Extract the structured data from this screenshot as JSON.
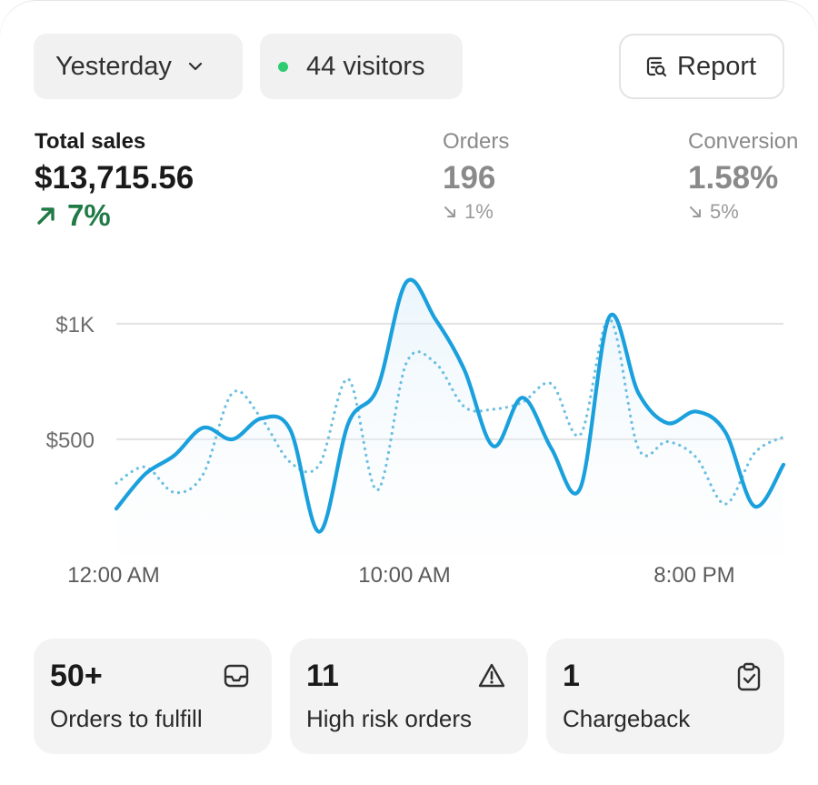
{
  "filters": {
    "date_label": "Yesterday",
    "visitors_label": "44 visitors",
    "live_dot_color": "#2ecc71"
  },
  "actions": {
    "report_label": "Report"
  },
  "metrics": [
    {
      "label": "Total sales",
      "value": "$13,715.56",
      "change": "7%",
      "direction": "up"
    },
    {
      "label": "Orders",
      "value": "196",
      "change": "1%",
      "direction": "down"
    },
    {
      "label": "Conversion",
      "value": "1.58%",
      "change": "5%",
      "direction": "down"
    }
  ],
  "chart_data": {
    "type": "line",
    "x_tick_labels": [
      "12:00 AM",
      "10:00 AM",
      "8:00 PM"
    ],
    "y_tick_labels": [
      "$1K",
      "$500"
    ],
    "ylim": [
      0,
      1200
    ],
    "grid": true,
    "series": [
      {
        "style": "solid",
        "color": "#1aa0dc",
        "values": [
          200,
          350,
          430,
          550,
          500,
          590,
          540,
          100,
          570,
          720,
          1180,
          1020,
          800,
          470,
          680,
          460,
          290,
          1030,
          700,
          570,
          620,
          530,
          210,
          390
        ]
      },
      {
        "style": "dotted",
        "color": "#6cbfe0",
        "values": [
          310,
          380,
          270,
          350,
          700,
          590,
          400,
          390,
          760,
          280,
          830,
          830,
          640,
          630,
          660,
          740,
          520,
          1020,
          460,
          490,
          420,
          220,
          440,
          510
        ]
      }
    ]
  },
  "tiles": [
    {
      "value": "50+",
      "label": "Orders to fulfill",
      "icon": "inbox-icon"
    },
    {
      "value": "11",
      "label": "High risk orders",
      "icon": "alert-triangle-icon"
    },
    {
      "value": "1",
      "label": "Chargeback",
      "icon": "clipboard-check-icon"
    }
  ]
}
